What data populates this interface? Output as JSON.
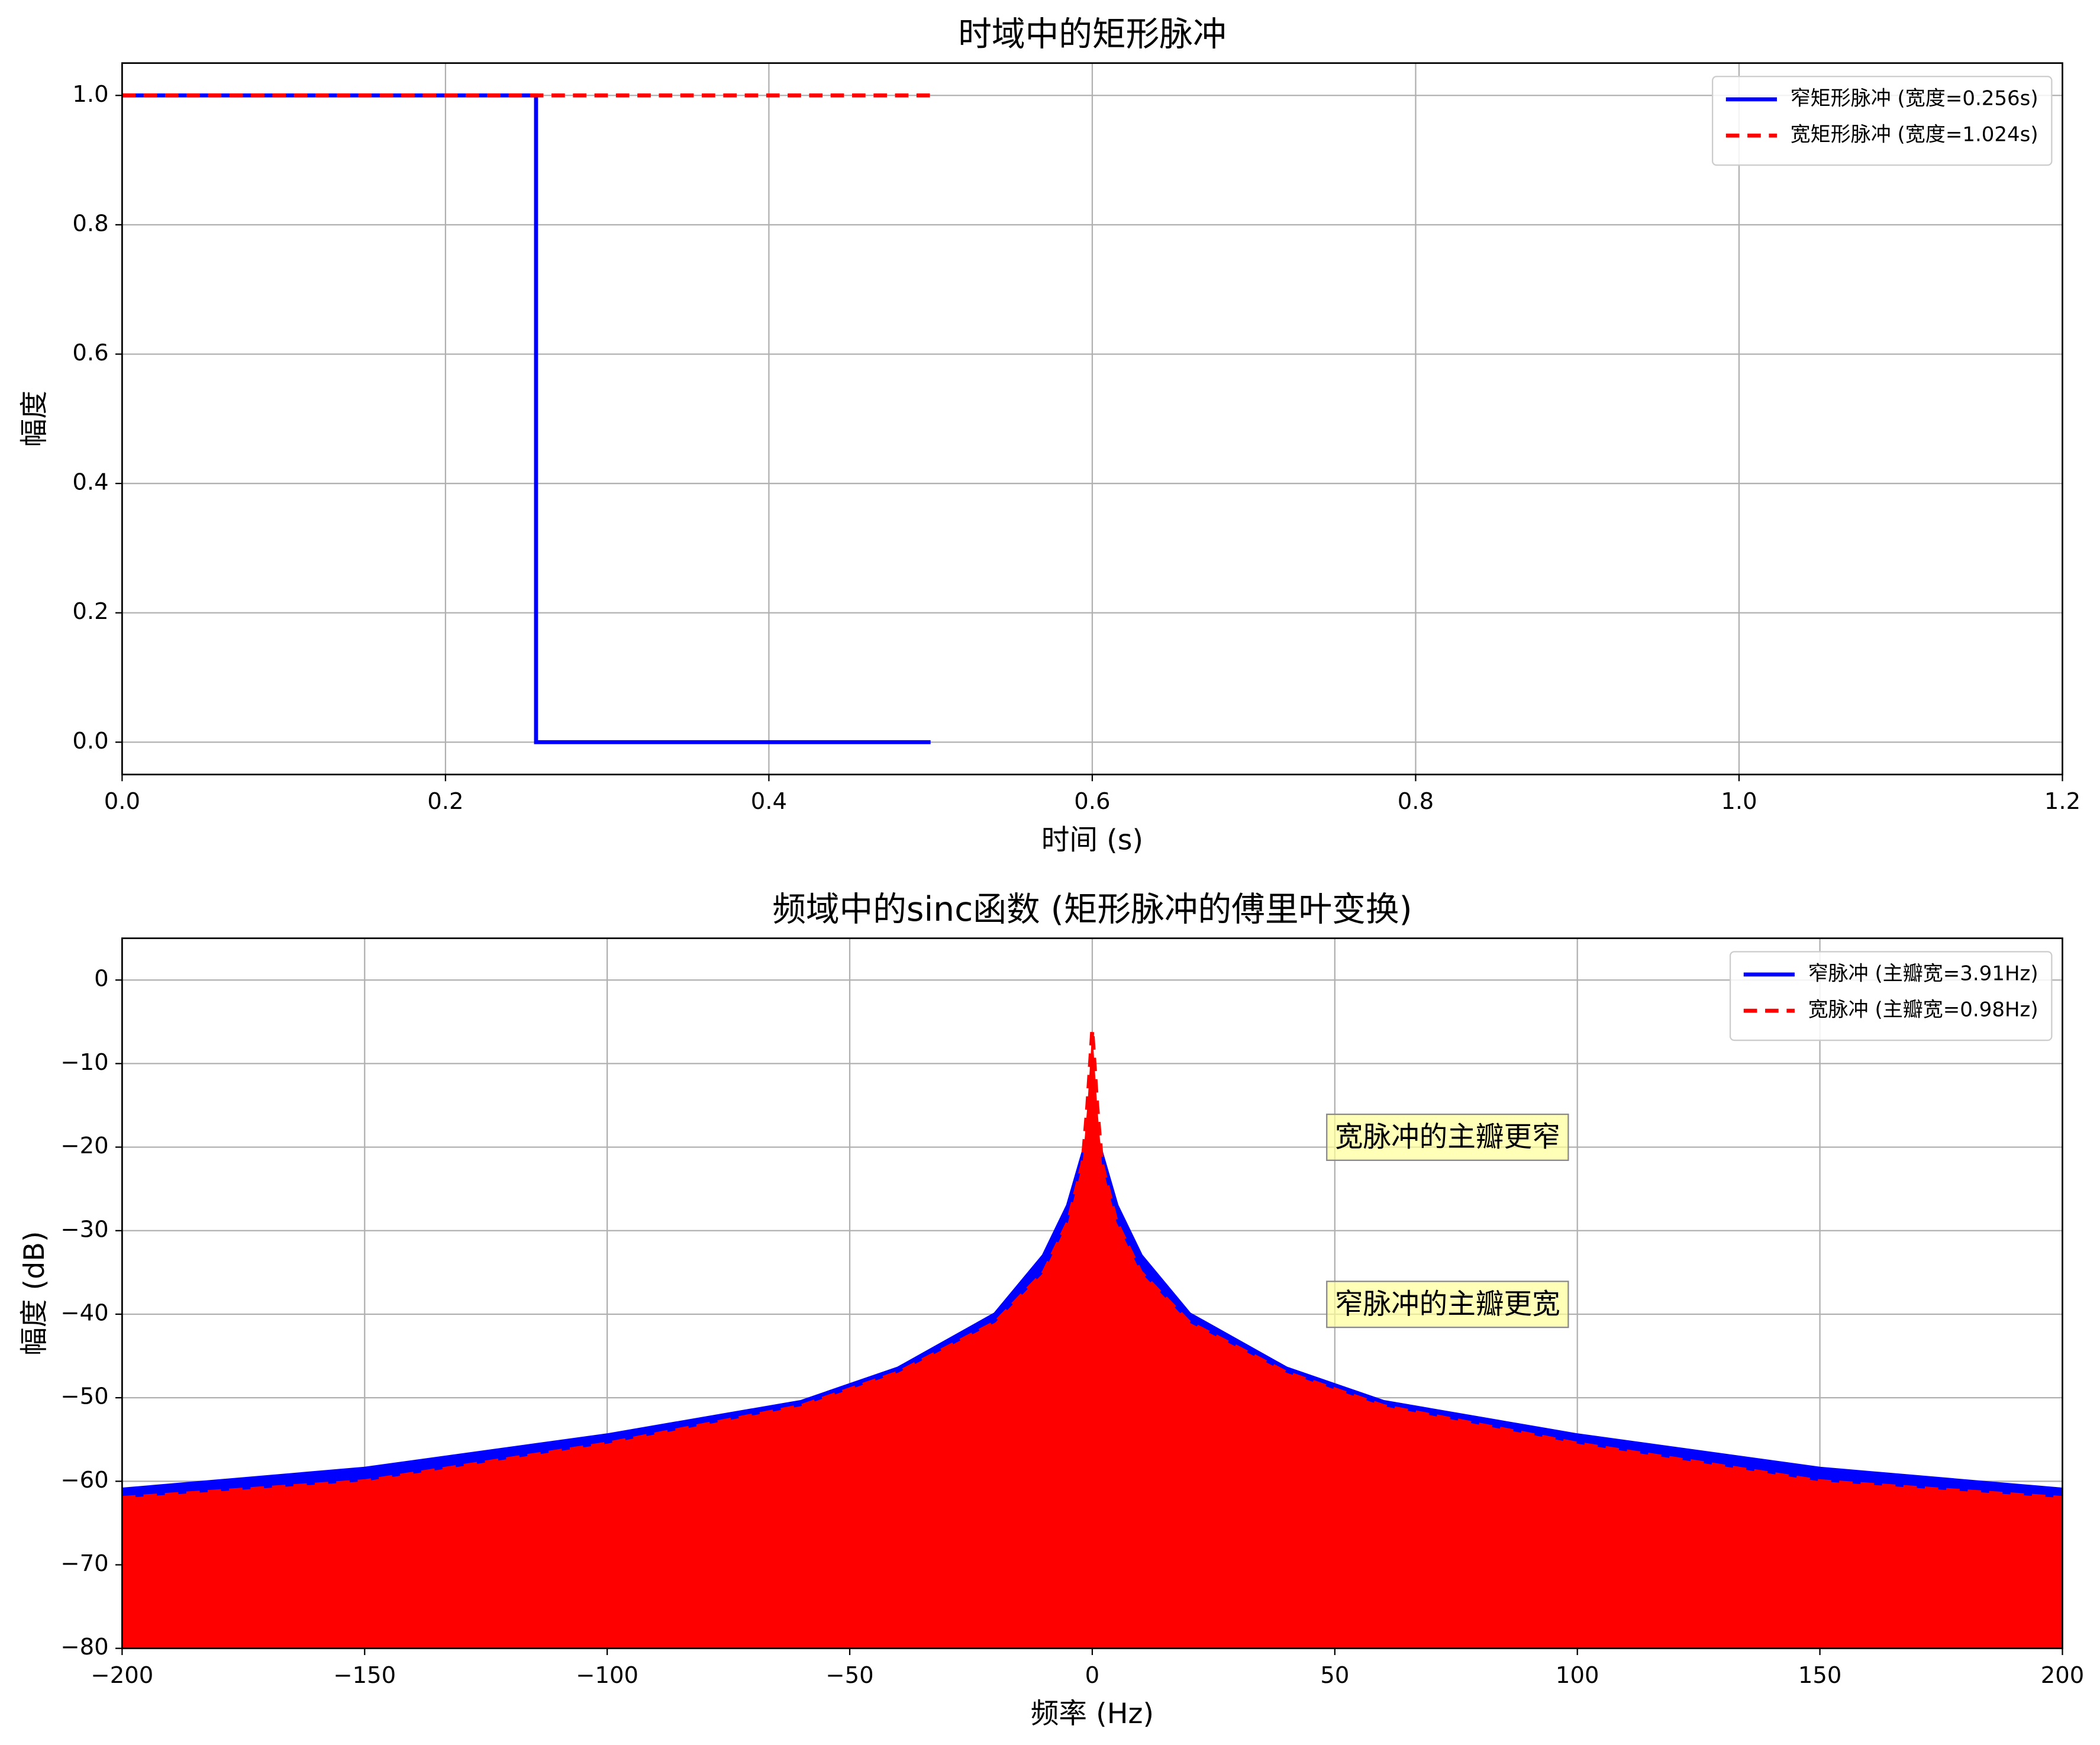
{
  "chart_data": [
    {
      "type": "line",
      "title": "时域中的矩形脉冲",
      "xlabel": "时间 (s)",
      "ylabel": "幅度",
      "series": [
        {
          "name": "窄矩形脉冲 (宽度=0.256s)",
          "color": "#0000ff",
          "dashed": false,
          "x": [
            0,
            0.256,
            0.256,
            0.5
          ],
          "values": [
            1,
            1,
            0,
            0
          ]
        },
        {
          "name": "宽矩形脉冲 (宽度=1.024s)",
          "color": "#ff0000",
          "dashed": true,
          "x": [
            0,
            0.5
          ],
          "values": [
            1,
            1
          ]
        }
      ],
      "xlim": [
        0,
        1.2
      ],
      "xticks": [
        {
          "value": 0,
          "label": "0.0"
        },
        {
          "value": 0.2,
          "label": "0.2"
        },
        {
          "value": 0.4,
          "label": "0.4"
        },
        {
          "value": 0.6,
          "label": "0.6"
        },
        {
          "value": 0.8,
          "label": "0.8"
        },
        {
          "value": 1.0,
          "label": "1.0"
        },
        {
          "value": 1.2,
          "label": "1.2"
        }
      ],
      "ylim": [
        -0.05,
        1.05
      ],
      "yticks": [
        {
          "value": 0,
          "label": "0.0"
        },
        {
          "value": 0.2,
          "label": "0.2"
        },
        {
          "value": 0.4,
          "label": "0.4"
        },
        {
          "value": 0.6,
          "label": "0.6"
        },
        {
          "value": 0.8,
          "label": "0.8"
        },
        {
          "value": 1.0,
          "label": "1.0"
        }
      ],
      "grid": true,
      "legend": "upper right"
    },
    {
      "type": "area",
      "title": "频域中的sinc函数 (矩形脉冲的傅里叶变换)",
      "xlabel": "频率 (Hz)",
      "ylabel": "幅度 (dB)",
      "series": [
        {
          "name": "窄脉冲 (主瓣宽=3.91Hz)",
          "color": "#0000ff",
          "dashed": false,
          "x": [
            -200,
            -150,
            -100,
            -60,
            -40,
            -20,
            -10,
            -5,
            -2,
            -1,
            0,
            1,
            2,
            5,
            10,
            20,
            40,
            60,
            100,
            150,
            200
          ],
          "values": [
            -61,
            -58.5,
            -54.5,
            -50.5,
            -46.5,
            -40,
            -33,
            -27,
            -21,
            -19,
            -18,
            -19,
            -21,
            -27,
            -33,
            -40,
            -46.5,
            -50.5,
            -54.5,
            -58.5,
            -61
          ]
        },
        {
          "name": "宽脉冲 (主瓣宽=0.98Hz)",
          "color": "#ff0000",
          "dashed": true,
          "x": [
            -200,
            -150,
            -100,
            -60,
            -40,
            -20,
            -10,
            -5,
            -2,
            -1,
            0,
            1,
            2,
            5,
            10,
            20,
            40,
            60,
            100,
            150,
            200
          ],
          "values": [
            -62,
            -60,
            -55.5,
            -51,
            -47,
            -41,
            -35,
            -29,
            -22,
            -15,
            -6,
            -15,
            -22,
            -29,
            -35,
            -41,
            -47,
            -51,
            -55.5,
            -60,
            -62
          ]
        }
      ],
      "annotations": [
        {
          "text": "宽脉冲的主瓣更窄",
          "x": 50,
          "y": -19,
          "color": "#ff0000"
        },
        {
          "text": "窄脉冲的主瓣更宽",
          "x": 50,
          "y": -39,
          "color": "#0000ff"
        }
      ],
      "xlim": [
        -200,
        200
      ],
      "xticks": [
        {
          "value": -200,
          "label": "−200"
        },
        {
          "value": -150,
          "label": "−150"
        },
        {
          "value": -100,
          "label": "−100"
        },
        {
          "value": -50,
          "label": "−50"
        },
        0,
        50,
        100,
        150,
        200
      ],
      "ylim": [
        -80,
        5
      ],
      "yticks": [
        {
          "value": -80,
          "label": "−80"
        },
        {
          "value": -70,
          "label": "−70"
        },
        {
          "value": -60,
          "label": "−60"
        },
        {
          "value": -50,
          "label": "−50"
        },
        {
          "value": -40,
          "label": "−40"
        },
        {
          "value": -30,
          "label": "−30"
        },
        {
          "value": -20,
          "label": "−20"
        },
        {
          "value": -10,
          "label": "−10"
        },
        0
      ],
      "grid": true,
      "legend": "upper right"
    }
  ]
}
